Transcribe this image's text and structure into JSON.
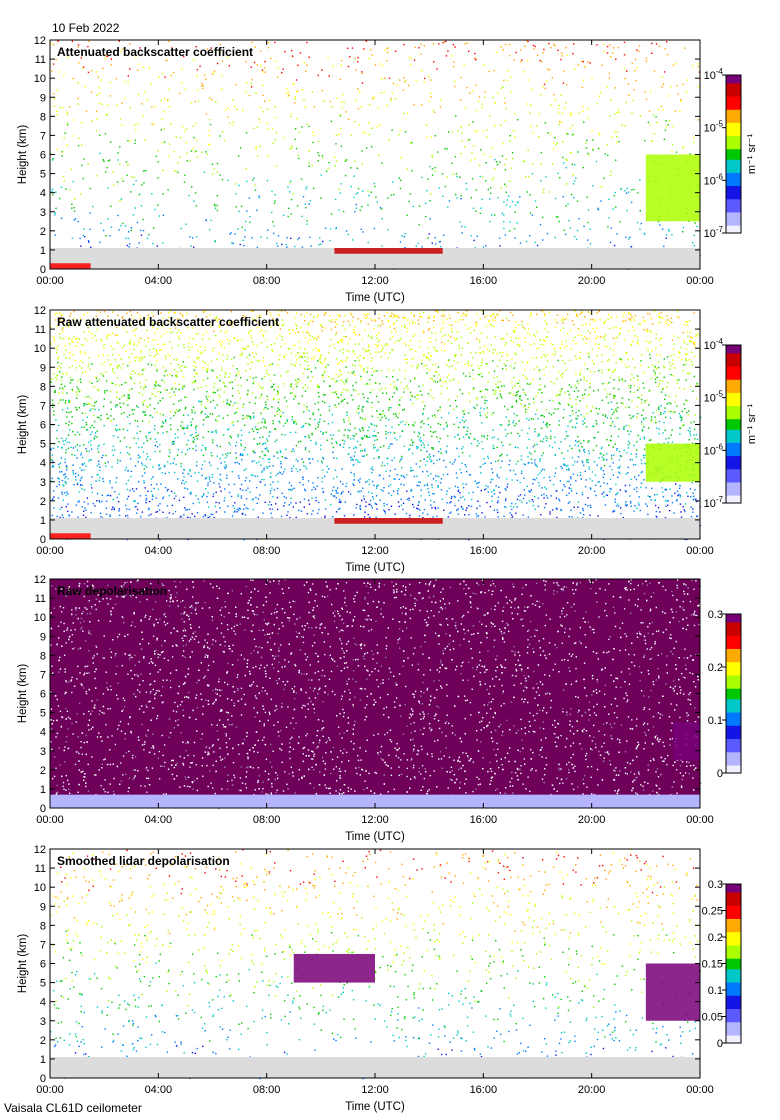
{
  "header": {
    "date": "10 Feb 2022"
  },
  "footer": {
    "instrument": "Vaisala CL61D ceilometer"
  },
  "colors": {
    "scale": [
      "#f0f0ff",
      "#b4b4ff",
      "#5a5aff",
      "#1414e6",
      "#0078ff",
      "#00c8c8",
      "#00c800",
      "#aaff00",
      "#ffff00",
      "#ffaa00",
      "#ff0000",
      "#c80000",
      "#780078"
    ],
    "background_fill": "#dcdcdc",
    "frame": "#000000"
  },
  "chart_data": [
    {
      "type": "heatmap",
      "title": "Attenuated backscatter coefficient",
      "xlabel": "Time (UTC)",
      "ylabel": "Height (km)",
      "xticks": [
        "00:00",
        "04:00",
        "08:00",
        "12:00",
        "16:00",
        "20:00",
        "00:00"
      ],
      "xlim_hours": [
        0,
        24
      ],
      "yticks": [
        "0",
        "1",
        "2",
        "3",
        "4",
        "5",
        "6",
        "7",
        "8",
        "9",
        "10",
        "11",
        "12"
      ],
      "ylim": [
        0,
        12
      ],
      "colorbar": {
        "scale": "log",
        "range": [
          1e-07,
          0.0001
        ],
        "unit": "m⁻¹ sr⁻¹",
        "ticks": [
          {
            "base": "10",
            "exp": "-4",
            "value": 0.0001
          },
          {
            "base": "10",
            "exp": "-5",
            "value": 1e-05
          },
          {
            "base": "10",
            "exp": "-6",
            "value": 1e-06
          },
          {
            "base": "10",
            "exp": "-7",
            "value": 1e-07
          }
        ]
      },
      "features": [
        {
          "name": "boundary layer",
          "t": [
            0,
            24
          ],
          "h": [
            0,
            1.1
          ],
          "level": 0.25
        },
        {
          "name": "cloud layer",
          "t": [
            10.5,
            14.5
          ],
          "h": [
            0.8,
            1.1
          ],
          "level": 0.9
        },
        {
          "name": "near-surface layer",
          "t": [
            0,
            1.5
          ],
          "h": [
            0,
            0.3
          ],
          "level": 0.85
        },
        {
          "name": "upper cloud",
          "t": [
            22,
            24
          ],
          "h": [
            2.5,
            6
          ],
          "level": 0.55
        }
      ],
      "noise": "sparse"
    },
    {
      "type": "heatmap",
      "title": "Raw attenuated backscatter coefficient",
      "xlabel": "Time (UTC)",
      "ylabel": "Height (km)",
      "xticks": [
        "00:00",
        "04:00",
        "08:00",
        "12:00",
        "16:00",
        "20:00",
        "00:00"
      ],
      "xlim_hours": [
        0,
        24
      ],
      "yticks": [
        "0",
        "1",
        "2",
        "3",
        "4",
        "5",
        "6",
        "7",
        "8",
        "9",
        "10",
        "11",
        "12"
      ],
      "ylim": [
        0,
        12
      ],
      "colorbar": {
        "scale": "log",
        "range": [
          1e-07,
          0.0001
        ],
        "unit": "m⁻¹ sr⁻¹",
        "ticks": [
          {
            "base": "10",
            "exp": "-4",
            "value": 0.0001
          },
          {
            "base": "10",
            "exp": "-5",
            "value": 1e-05
          },
          {
            "base": "10",
            "exp": "-6",
            "value": 1e-06
          },
          {
            "base": "10",
            "exp": "-7",
            "value": 1e-07
          }
        ]
      },
      "features": [
        {
          "name": "boundary layer",
          "t": [
            0,
            24
          ],
          "h": [
            0,
            1.1
          ],
          "level": 0.25
        },
        {
          "name": "cloud layer",
          "t": [
            10.5,
            14.5
          ],
          "h": [
            0.8,
            1.1
          ],
          "level": 0.9
        },
        {
          "name": "near-surface layer",
          "t": [
            0,
            1.5
          ],
          "h": [
            0,
            0.3
          ],
          "level": 0.85
        },
        {
          "name": "upper cloud",
          "t": [
            22,
            24
          ],
          "h": [
            3,
            5
          ],
          "level": 0.6
        }
      ],
      "noise": "dense"
    },
    {
      "type": "heatmap",
      "title": "Raw depolarisation",
      "xlabel": "Time (UTC)",
      "ylabel": "Height (km)",
      "xticks": [
        "00:00",
        "04:00",
        "08:00",
        "12:00",
        "16:00",
        "20:00",
        "00:00"
      ],
      "xlim_hours": [
        0,
        24
      ],
      "yticks": [
        "0",
        "1",
        "2",
        "3",
        "4",
        "5",
        "6",
        "7",
        "8",
        "9",
        "10",
        "11",
        "12"
      ],
      "ylim": [
        0,
        12
      ],
      "colorbar": {
        "scale": "linear",
        "range": [
          0,
          0.3
        ],
        "ticks": [
          {
            "label": "0.3",
            "value": 0.3
          },
          {
            "label": "0.2",
            "value": 0.2
          },
          {
            "label": "0.1",
            "value": 0.1
          },
          {
            "label": "0",
            "value": 0
          }
        ]
      },
      "features": [
        {
          "name": "boundary layer",
          "t": [
            0,
            24
          ],
          "h": [
            0,
            0.7
          ],
          "level": 0.2
        },
        {
          "name": "upper cloud",
          "t": [
            23,
            24
          ],
          "h": [
            2.5,
            4.5
          ],
          "level": 1.0
        }
      ],
      "noise": "saturated"
    },
    {
      "type": "heatmap",
      "title": "Smoothed lidar depolarisation",
      "xlabel": "Time (UTC)",
      "ylabel": "Height (km)",
      "xticks": [
        "00:00",
        "04:00",
        "08:00",
        "12:00",
        "16:00",
        "20:00",
        "00:00"
      ],
      "xlim_hours": [
        0,
        24
      ],
      "yticks": [
        "0",
        "1",
        "2",
        "3",
        "4",
        "5",
        "6",
        "7",
        "8",
        "9",
        "10",
        "11",
        "12"
      ],
      "ylim": [
        0,
        12
      ],
      "colorbar": {
        "scale": "linear",
        "range": [
          0,
          0.3
        ],
        "ticks": [
          {
            "label": "0.3",
            "value": 0.3
          },
          {
            "label": "0.25",
            "value": 0.25
          },
          {
            "label": "0.2",
            "value": 0.2
          },
          {
            "label": "0.15",
            "value": 0.15
          },
          {
            "label": "0.1",
            "value": 0.1
          },
          {
            "label": "0.05",
            "value": 0.05
          },
          {
            "label": "0",
            "value": 0
          }
        ]
      },
      "features": [
        {
          "name": "boundary layer",
          "t": [
            0,
            24
          ],
          "h": [
            0,
            1.1
          ],
          "level": 0.2
        },
        {
          "name": "mid-level cloud",
          "t": [
            9,
            12
          ],
          "h": [
            5,
            6.5
          ],
          "level": 1.0
        },
        {
          "name": "upper cloud",
          "t": [
            22,
            24
          ],
          "h": [
            3,
            6
          ],
          "level": 1.0
        }
      ],
      "noise": "sparse"
    }
  ]
}
